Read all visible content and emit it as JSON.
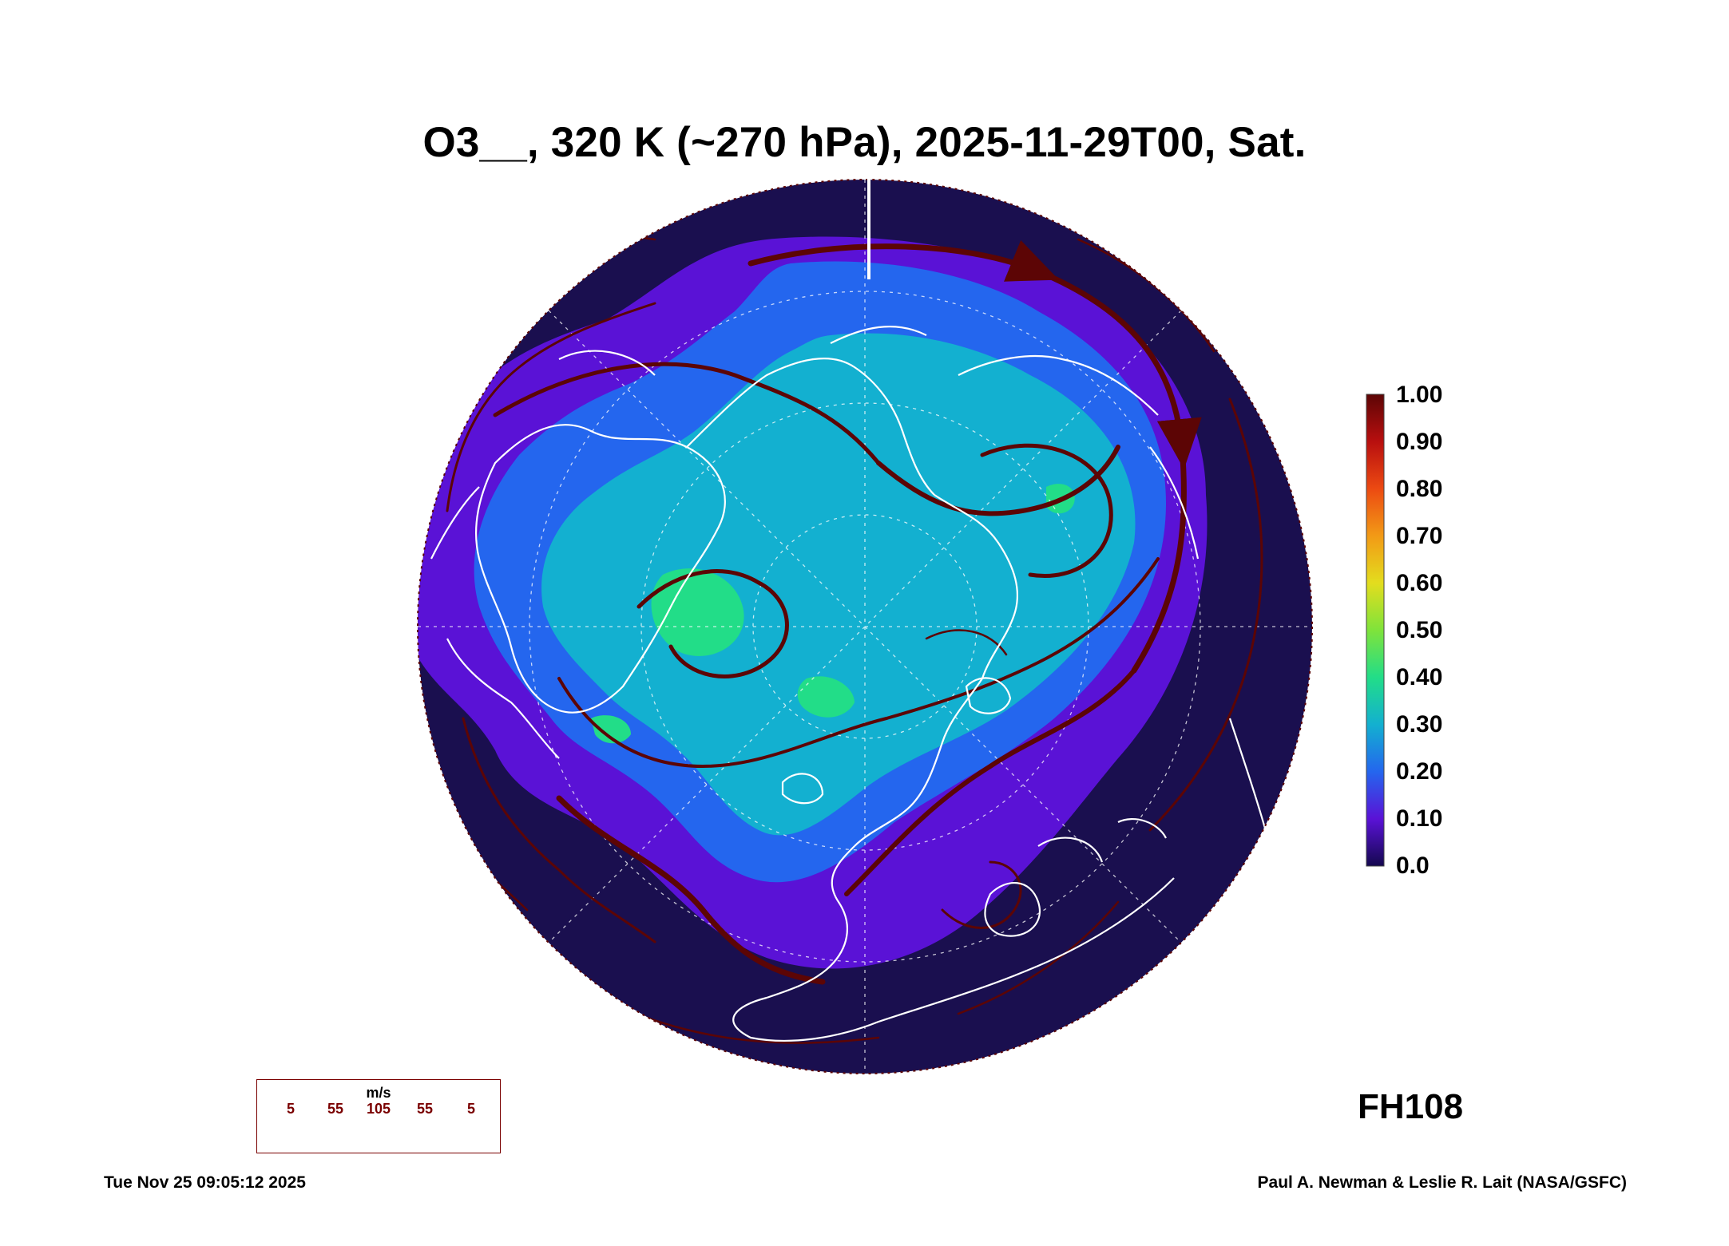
{
  "title": "O3__, 320 K (~270 hPa), 2025-11-29T00, Sat.",
  "colorbar": {
    "labels": [
      "1.00",
      "0.90",
      "0.80",
      "0.70",
      "0.60",
      "0.50",
      "0.40",
      "0.30",
      "0.20",
      "0.10",
      "0.0"
    ],
    "colors": [
      "#14084f",
      "#5a12d6",
      "#2466ee",
      "#13b0d0",
      "#22dd88",
      "#7fe33b",
      "#e3dd1e",
      "#f29a16",
      "#ec4a12",
      "#b80f0f",
      "#5c0505"
    ]
  },
  "map": {
    "background": "#1a0f4f",
    "streamline_color": "#5c0505",
    "coast_color": "#ffffff"
  },
  "forecast_hour": "FH108",
  "legend": {
    "unit": "m/s",
    "ticks": [
      "5",
      "55",
      "105",
      "55",
      "5"
    ]
  },
  "footer": {
    "timestamp": "Tue Nov 25 09:05:12 2025",
    "credit": "Paul A. Newman & Leslie R. Lait (NASA/GSFC)"
  }
}
